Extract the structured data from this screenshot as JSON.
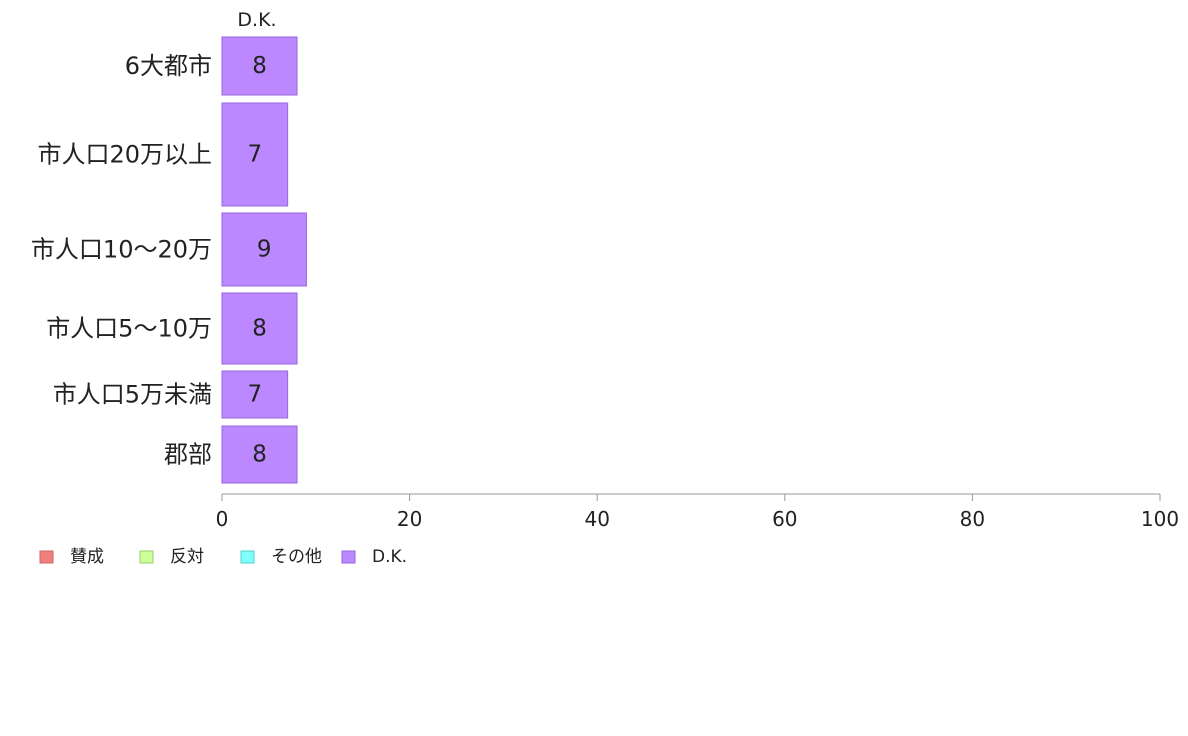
{
  "chart_data": {
    "type": "bar",
    "orientation": "horizontal",
    "stacked": true,
    "column_header": "D.K.",
    "categories": [
      "6大都市",
      "市人口20万以上",
      "市人口10〜20万",
      "市人口5〜10万",
      "市人口5万未満",
      "郡部"
    ],
    "series": [
      {
        "name": "賛成",
        "color": "#f08080",
        "values": [
          null,
          null,
          null,
          null,
          null,
          null
        ]
      },
      {
        "name": "反対",
        "color": "#ccff99",
        "values": [
          null,
          null,
          null,
          null,
          null,
          null
        ]
      },
      {
        "name": "その他",
        "color": "#80ffff",
        "values": [
          null,
          null,
          null,
          null,
          null,
          null
        ]
      },
      {
        "name": "D.K.",
        "color": "#bb88ff",
        "values": [
          8,
          7,
          9,
          8,
          7,
          8
        ]
      }
    ],
    "value_labels": [
      "8",
      "7",
      "9",
      "8",
      "7",
      "8"
    ],
    "xlim": [
      0,
      100
    ],
    "xticks": [
      0,
      20,
      40,
      60,
      80,
      100
    ],
    "xtick_labels": [
      "0",
      "20",
      "40",
      "60",
      "80",
      "100"
    ],
    "grid": false,
    "legend_position": "bottom-left"
  }
}
